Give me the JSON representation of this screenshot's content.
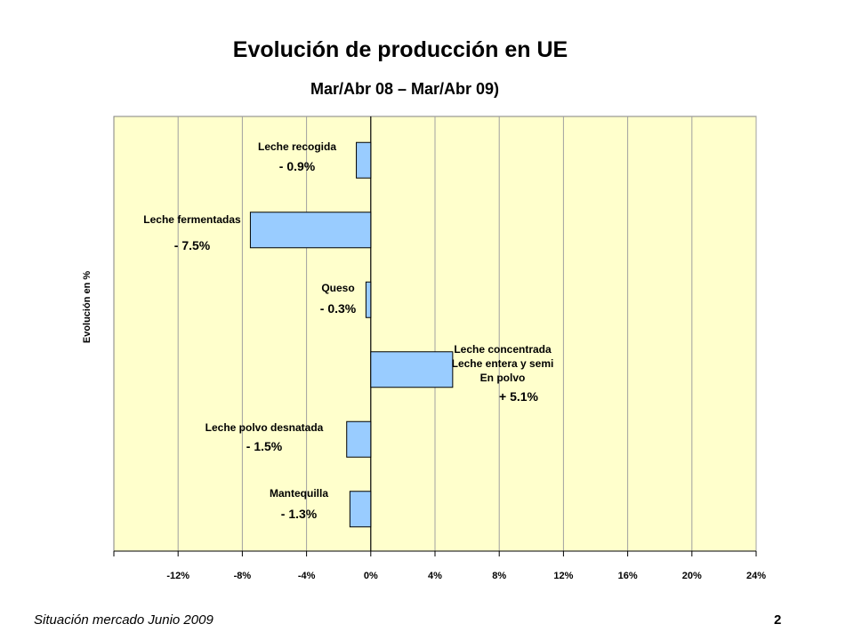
{
  "page": {
    "title": "Evolución de producción en UE",
    "subtitle": "Mar/Abr 08 – Mar/Abr 09)",
    "footer_left": "Situación mercado Junio 2009",
    "footer_right": "2"
  },
  "colors": {
    "plot_background": "#ffffcc",
    "bar_fill": "#99ccff",
    "bar_stroke": "#000000",
    "grid": "#a0a0a0"
  },
  "chart_data": {
    "type": "bar",
    "orientation": "horizontal",
    "ylabel": "Evolución en %",
    "xlim": [
      -16,
      24
    ],
    "xticks": [
      -12,
      -8,
      -4,
      0,
      4,
      8,
      12,
      16,
      20,
      24
    ],
    "xtick_labels": [
      "-12%",
      "-8%",
      "-4%",
      "0%",
      "4%",
      "8%",
      "12%",
      "16%",
      "20%",
      "24%"
    ],
    "grid": true,
    "legend": "none",
    "bars": [
      {
        "category": "Leche recogida",
        "value": -0.9,
        "value_label": "- 0.9%"
      },
      {
        "category": "Leche fermentadas",
        "value": -7.5,
        "value_label": "- 7.5%"
      },
      {
        "category": "Queso",
        "value": -0.3,
        "value_label": "- 0.3%"
      },
      {
        "category": [
          "Leche concentrada",
          "Leche entera y semi",
          "En polvo"
        ],
        "value": 5.1,
        "value_label": "+ 5.1%"
      },
      {
        "category": "Leche polvo desnatada",
        "value": -1.5,
        "value_label": "- 1.5%"
      },
      {
        "category": "Mantequilla",
        "value": -1.3,
        "value_label": "- 1.3%"
      }
    ]
  }
}
